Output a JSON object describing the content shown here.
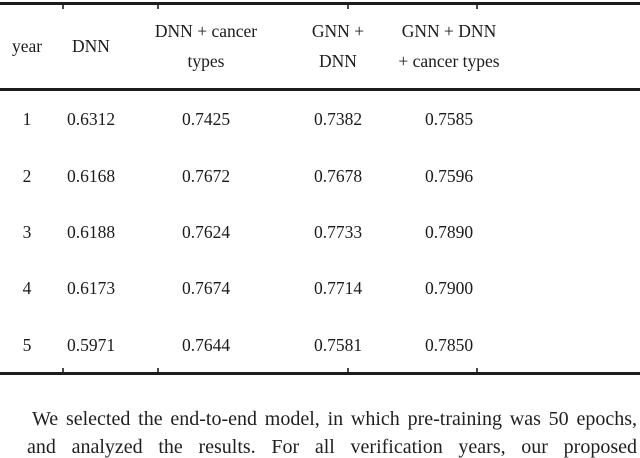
{
  "table": {
    "columns": [
      {
        "line1": "year",
        "line2": ""
      },
      {
        "line1": "DNN",
        "line2": ""
      },
      {
        "line1": "DNN + cancer",
        "line2": "types"
      },
      {
        "line1": "GNN +",
        "line2": "DNN"
      },
      {
        "line1": "GNN + DNN",
        "line2": "+ cancer types"
      }
    ],
    "rows": [
      {
        "year": "1",
        "dnn": "0.6312",
        "dnn_cancer": "0.7425",
        "gnn_dnn": "0.7382",
        "gnn_dnn_cancer": "0.7585"
      },
      {
        "year": "2",
        "dnn": "0.6168",
        "dnn_cancer": "0.7672",
        "gnn_dnn": "0.7678",
        "gnn_dnn_cancer": "0.7596"
      },
      {
        "year": "3",
        "dnn": "0.6188",
        "dnn_cancer": "0.7624",
        "gnn_dnn": "0.7733",
        "gnn_dnn_cancer": "0.7890"
      },
      {
        "year": "4",
        "dnn": "0.6173",
        "dnn_cancer": "0.7674",
        "gnn_dnn": "0.7714",
        "gnn_dnn_cancer": "0.7900"
      },
      {
        "year": "5",
        "dnn": "0.5971",
        "dnn_cancer": "0.7644",
        "gnn_dnn": "0.7581",
        "gnn_dnn_cancer": "0.7850"
      }
    ]
  },
  "paragraph": {
    "lines": [
      "We selected the end-to-end model, in which pre-training was 50 epochs,",
      "and analyzed the results. For all verification years, our proposed"
    ]
  }
}
